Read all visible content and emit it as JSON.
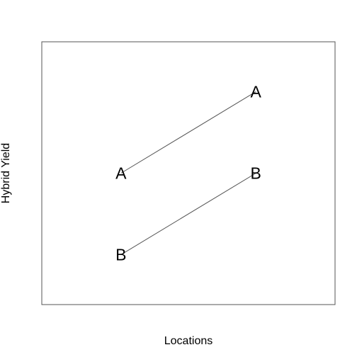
{
  "chart_data": {
    "type": "line",
    "title": "",
    "xlabel": "Locations",
    "ylabel": "Hybrid Yield",
    "xlim": [
      0,
      1
    ],
    "ylim": [
      0,
      1
    ],
    "grid": false,
    "x": [
      0.27,
      0.73
    ],
    "series": [
      {
        "name": "A",
        "marker": "A",
        "values": [
          0.5,
          0.81
        ]
      },
      {
        "name": "B",
        "marker": "B",
        "values": [
          0.19,
          0.5
        ]
      }
    ],
    "colors": {
      "line": "#555555",
      "frame": "#555555",
      "text": "#000000"
    }
  }
}
